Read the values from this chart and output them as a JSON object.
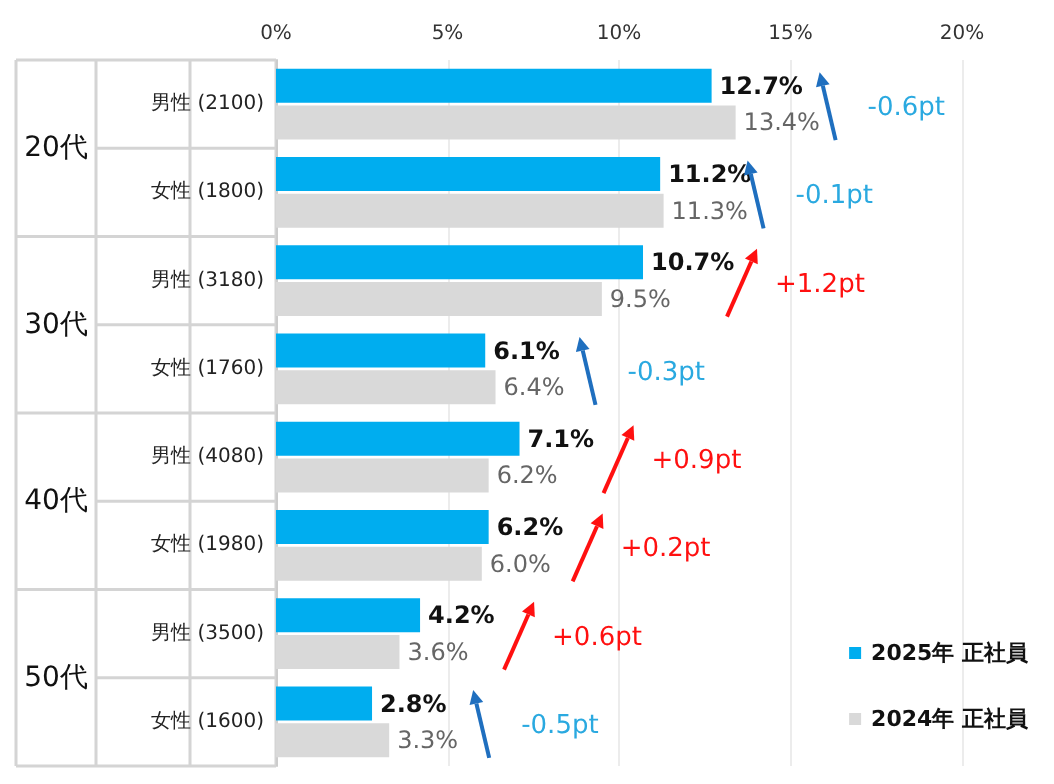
{
  "chart_data": {
    "type": "bar",
    "orientation": "horizontal",
    "categories": [
      "男性 (2100)",
      "女性 (1800)",
      "男性 (3180)",
      "女性 (1760)",
      "男性 (4080)",
      "女性 (1980)",
      "男性 (3500)",
      "女性 (1600)"
    ],
    "series": [
      {
        "name": "2025年 正社員",
        "color": "#00adef",
        "values": [
          12.7,
          11.2,
          10.7,
          6.1,
          7.1,
          6.2,
          4.2,
          2.8
        ],
        "value_labels": [
          "12.7%",
          "11.2%",
          "10.7%",
          "6.1%",
          "7.1%",
          "6.2%",
          "4.2%",
          "2.8%"
        ]
      },
      {
        "name": "2024年 正社員",
        "color": "#d9d9d9",
        "values": [
          13.4,
          11.3,
          9.5,
          6.4,
          6.2,
          6.0,
          3.6,
          3.3
        ],
        "value_labels": [
          "13.4%",
          "11.3%",
          "9.5%",
          "6.4%",
          "6.2%",
          "6.0%",
          "3.6%",
          "3.3%"
        ]
      }
    ],
    "xlim": [
      0,
      20
    ],
    "xticks": [
      {
        "value": 0,
        "label": "0%"
      },
      {
        "value": 5,
        "label": "5%"
      },
      {
        "value": 10,
        "label": "10%"
      },
      {
        "value": 15,
        "label": "15%"
      },
      {
        "value": 20,
        "label": "20%"
      }
    ],
    "grid": "x",
    "legend": "bottom right",
    "annotations": [
      "20代",
      "30代",
      "40代",
      "50代",
      "-0.6pt",
      "-0.1pt",
      "+1.2pt",
      "-0.3pt",
      "+0.9pt",
      "+0.2pt",
      "+0.6pt",
      "-0.5pt"
    ]
  }
}
